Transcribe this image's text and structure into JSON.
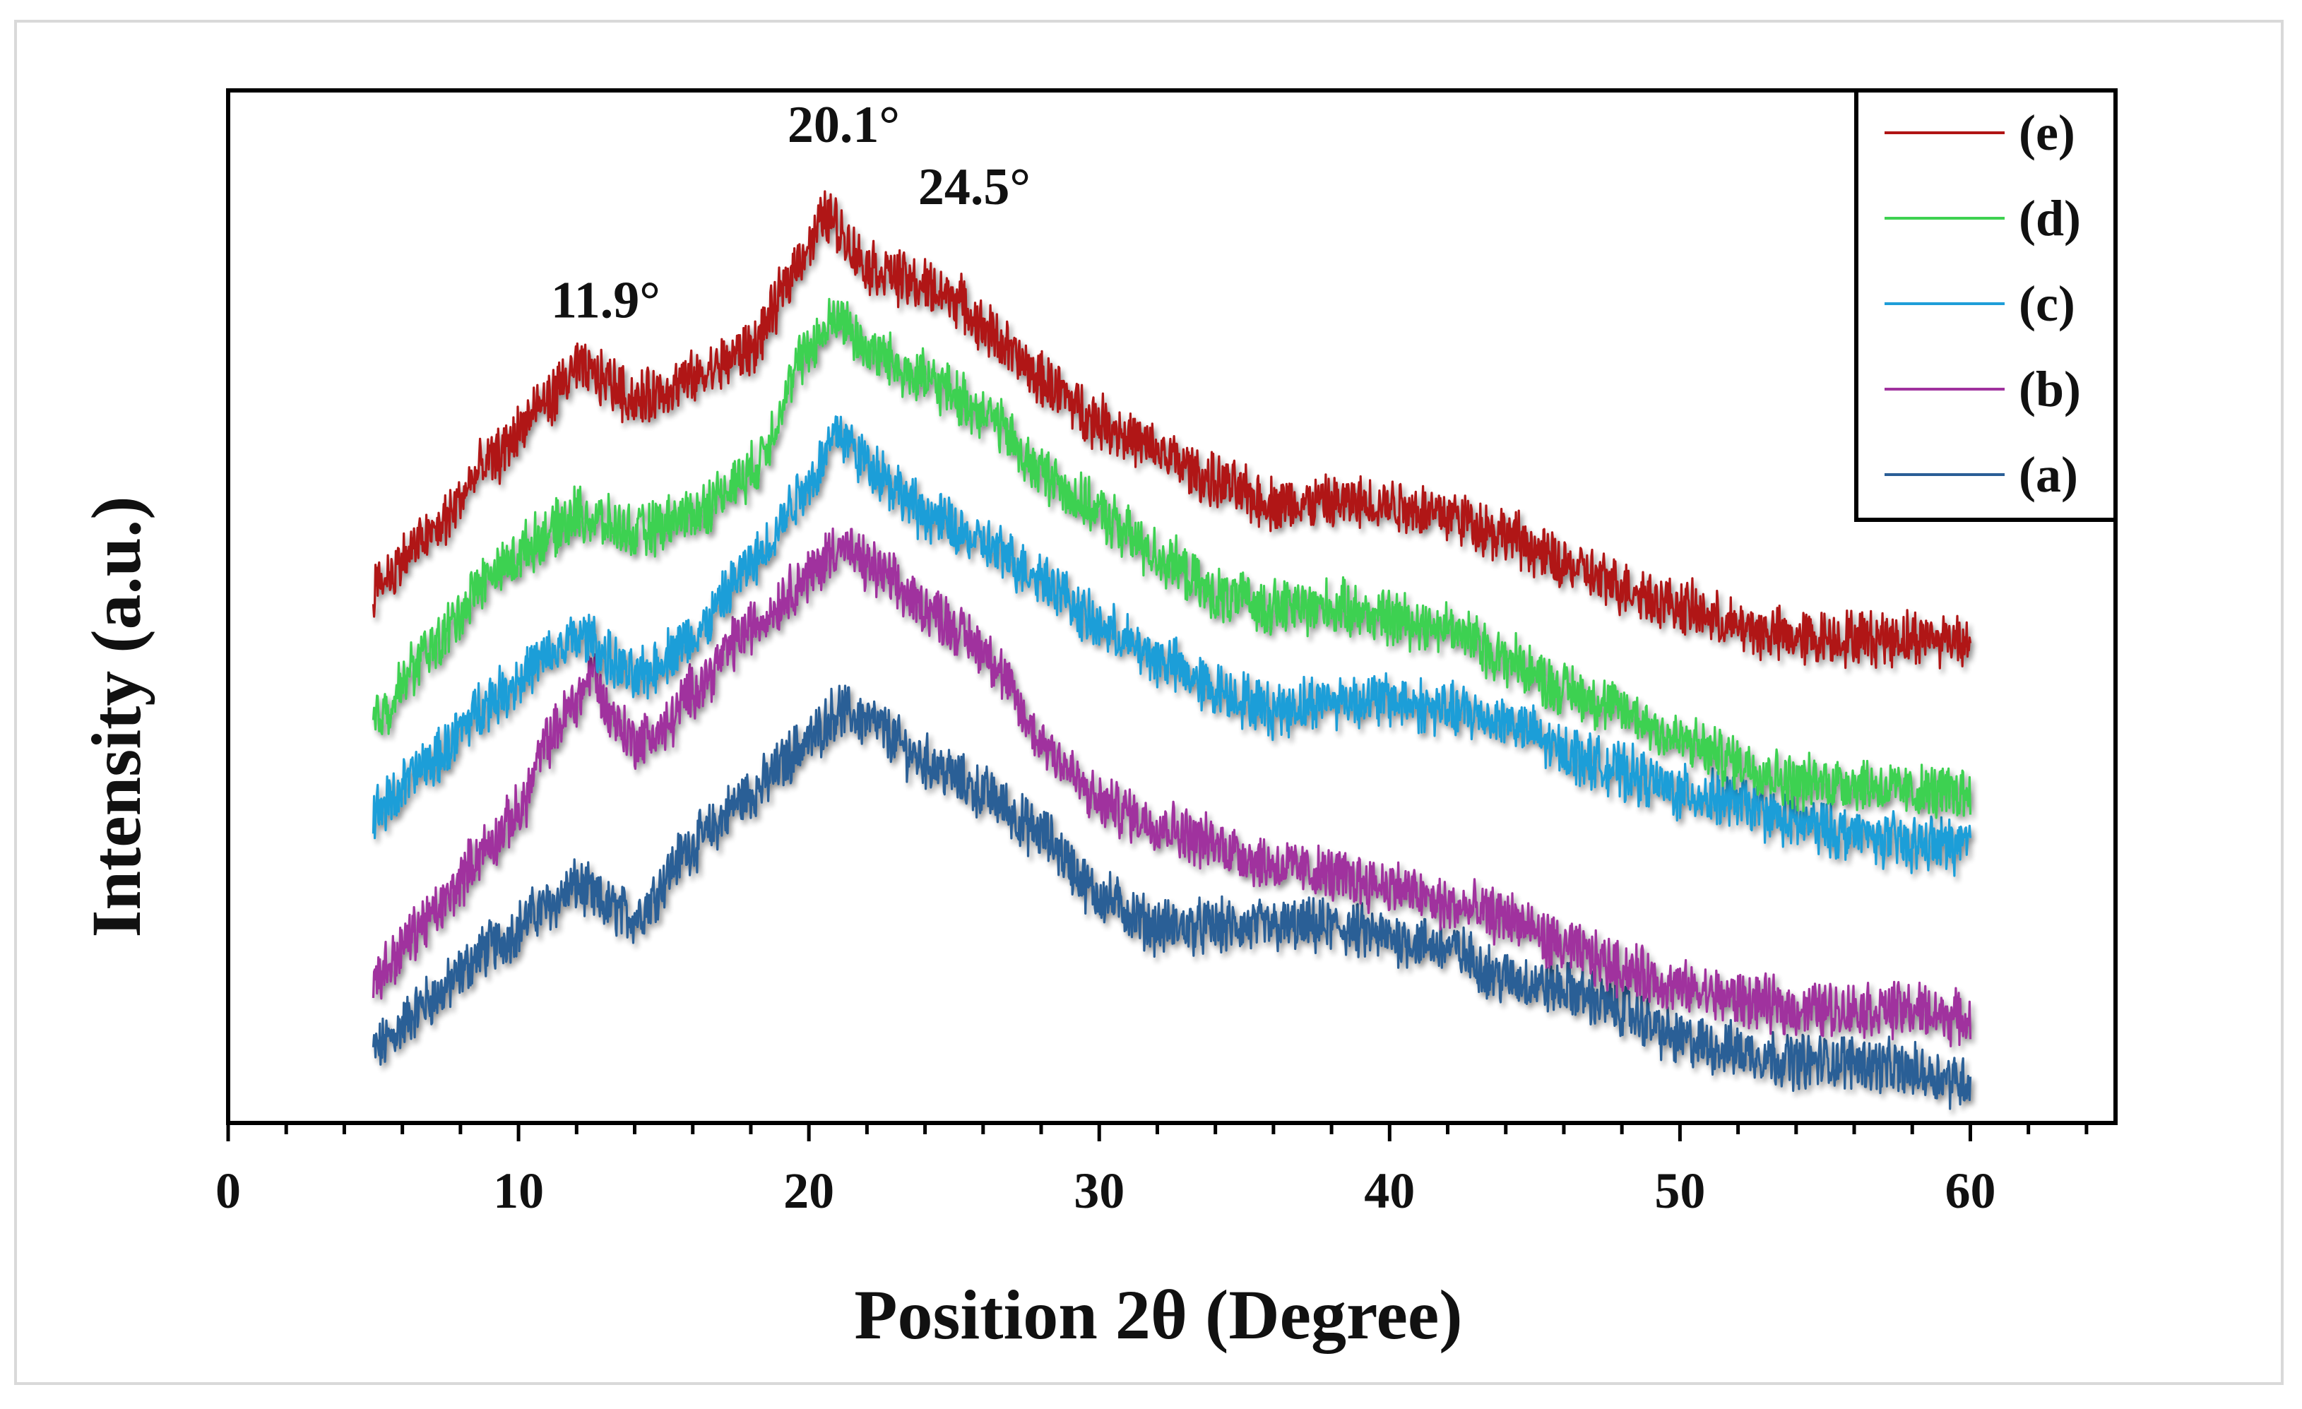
{
  "chart_data": {
    "type": "line",
    "xlabel": "Position  2θ (Degree)",
    "ylabel": "Intensity  (a.u.)",
    "xlim": [
      0,
      65
    ],
    "x_ticks": [
      0,
      10,
      20,
      30,
      40,
      50,
      60
    ],
    "x_minor_step": 2,
    "ylim": [
      0,
      100
    ],
    "y_ticks_shown": false,
    "grid": false,
    "legend_position": "top-right",
    "legend_order": [
      "(e)",
      "(d)",
      "(c)",
      "(b)",
      "(a)"
    ],
    "annotations": [
      {
        "text": "11.9°",
        "x": 13.0,
        "y": 78
      },
      {
        "text": "20.1°",
        "x": 21.2,
        "y": 95
      },
      {
        "text": "24.5°",
        "x": 25.7,
        "y": 89
      }
    ],
    "series": [
      {
        "name": "(a)",
        "color": "#2a5e96",
        "points": [
          [
            5,
            7
          ],
          [
            7,
            12
          ],
          [
            9,
            17
          ],
          [
            11,
            21
          ],
          [
            12,
            23
          ],
          [
            13,
            21
          ],
          [
            14,
            20
          ],
          [
            16,
            27
          ],
          [
            18,
            32
          ],
          [
            20,
            37
          ],
          [
            21,
            40
          ],
          [
            22,
            39
          ],
          [
            24,
            35
          ],
          [
            26,
            32
          ],
          [
            28,
            28
          ],
          [
            30,
            22
          ],
          [
            32,
            19
          ],
          [
            34,
            19
          ],
          [
            36,
            19
          ],
          [
            38,
            19
          ],
          [
            40,
            18
          ],
          [
            42,
            17
          ],
          [
            44,
            14
          ],
          [
            46,
            13
          ],
          [
            48,
            11
          ],
          [
            50,
            8
          ],
          [
            52,
            7
          ],
          [
            54,
            6
          ],
          [
            56,
            6
          ],
          [
            58,
            5
          ],
          [
            60,
            4
          ]
        ]
      },
      {
        "name": "(b)",
        "color": "#a0329e",
        "points": [
          [
            5,
            14
          ],
          [
            7,
            20
          ],
          [
            9,
            27
          ],
          [
            10,
            30
          ],
          [
            11,
            37
          ],
          [
            12,
            41
          ],
          [
            12.6,
            44
          ],
          [
            13,
            40
          ],
          [
            14,
            37
          ],
          [
            15,
            38
          ],
          [
            16,
            42
          ],
          [
            18,
            48
          ],
          [
            20,
            53
          ],
          [
            21,
            56
          ],
          [
            22,
            54
          ],
          [
            24,
            50
          ],
          [
            26,
            46
          ],
          [
            28,
            37
          ],
          [
            30,
            31
          ],
          [
            32,
            29
          ],
          [
            34,
            27
          ],
          [
            36,
            25
          ],
          [
            38,
            24
          ],
          [
            40,
            23
          ],
          [
            42,
            21
          ],
          [
            44,
            20
          ],
          [
            46,
            17
          ],
          [
            48,
            15
          ],
          [
            50,
            13
          ],
          [
            52,
            12
          ],
          [
            54,
            11
          ],
          [
            56,
            11
          ],
          [
            58,
            11
          ],
          [
            60,
            10
          ]
        ]
      },
      {
        "name": "(c)",
        "color": "#1f9ed8",
        "points": [
          [
            5,
            30
          ],
          [
            7,
            35
          ],
          [
            9,
            41
          ],
          [
            11,
            45
          ],
          [
            12,
            47
          ],
          [
            12.5,
            47
          ],
          [
            13,
            45
          ],
          [
            14,
            43
          ],
          [
            16,
            47
          ],
          [
            18,
            54
          ],
          [
            20,
            62
          ],
          [
            21,
            67
          ],
          [
            22,
            64
          ],
          [
            24,
            59
          ],
          [
            26,
            56
          ],
          [
            28,
            53
          ],
          [
            30,
            48
          ],
          [
            32,
            45
          ],
          [
            34,
            42
          ],
          [
            36,
            40
          ],
          [
            38,
            41
          ],
          [
            40,
            41
          ],
          [
            42,
            40
          ],
          [
            44,
            39
          ],
          [
            46,
            36
          ],
          [
            48,
            34
          ],
          [
            50,
            32
          ],
          [
            52,
            31
          ],
          [
            54,
            29
          ],
          [
            56,
            28
          ],
          [
            58,
            27
          ],
          [
            60,
            27
          ]
        ]
      },
      {
        "name": "(d)",
        "color": "#3ed151",
        "points": [
          [
            5,
            39
          ],
          [
            7,
            46
          ],
          [
            9,
            53
          ],
          [
            11,
            57
          ],
          [
            12,
            59
          ],
          [
            13,
            58
          ],
          [
            14,
            57
          ],
          [
            16,
            59
          ],
          [
            18,
            63
          ],
          [
            20,
            75
          ],
          [
            21,
            78
          ],
          [
            22,
            75
          ],
          [
            24,
            72
          ],
          [
            26,
            69
          ],
          [
            28,
            63
          ],
          [
            30,
            59
          ],
          [
            32,
            55
          ],
          [
            34,
            51
          ],
          [
            36,
            50
          ],
          [
            38,
            50
          ],
          [
            40,
            49
          ],
          [
            42,
            48
          ],
          [
            44,
            45
          ],
          [
            46,
            42
          ],
          [
            48,
            40
          ],
          [
            50,
            37
          ],
          [
            52,
            35
          ],
          [
            54,
            33
          ],
          [
            56,
            33
          ],
          [
            58,
            32
          ],
          [
            60,
            32
          ]
        ]
      },
      {
        "name": "(e)",
        "color": "#b01414",
        "points": [
          [
            5,
            52
          ],
          [
            7,
            57
          ],
          [
            9,
            64
          ],
          [
            11,
            70
          ],
          [
            12,
            73
          ],
          [
            13,
            72
          ],
          [
            14,
            70
          ],
          [
            16,
            72
          ],
          [
            18,
            75
          ],
          [
            20,
            85
          ],
          [
            20.6,
            88
          ],
          [
            22,
            83
          ],
          [
            24,
            81
          ],
          [
            25,
            80
          ],
          [
            26,
            77
          ],
          [
            28,
            72
          ],
          [
            30,
            68
          ],
          [
            32,
            65
          ],
          [
            34,
            62
          ],
          [
            36,
            60
          ],
          [
            38,
            60
          ],
          [
            40,
            60
          ],
          [
            42,
            59
          ],
          [
            44,
            57
          ],
          [
            46,
            54
          ],
          [
            48,
            52
          ],
          [
            50,
            50
          ],
          [
            52,
            48
          ],
          [
            54,
            47
          ],
          [
            56,
            47
          ],
          [
            58,
            47
          ],
          [
            60,
            47
          ]
        ]
      }
    ]
  }
}
